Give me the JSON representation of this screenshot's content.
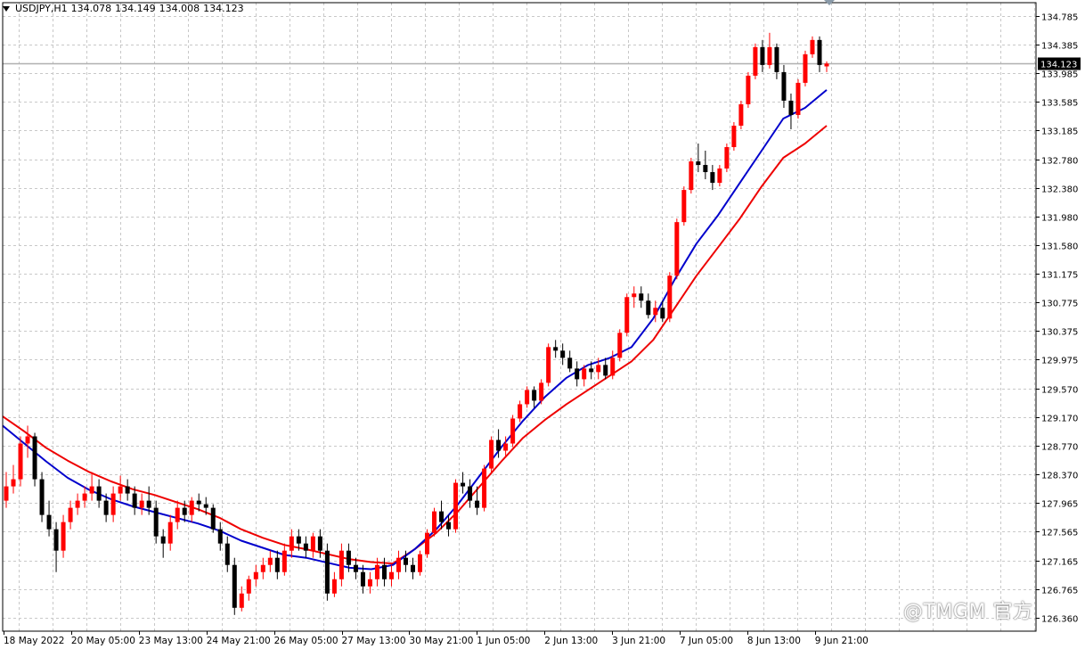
{
  "header": {
    "symbol": "USDJPY,H1",
    "open": "134.078",
    "high": "134.149",
    "low": "134.008",
    "close": "134.123"
  },
  "watermark": "@TMGM 官方",
  "chart_data": {
    "type": "candlestick",
    "symbol": "USDJPY",
    "timeframe": "H1",
    "last_price": "134.123",
    "ylim": [
      126.36,
      134.95
    ],
    "y_ticks": [
      "134.785",
      "134.385",
      "133.985",
      "133.585",
      "133.185",
      "132.780",
      "132.380",
      "131.980",
      "131.580",
      "131.175",
      "130.775",
      "130.375",
      "129.975",
      "129.570",
      "129.170",
      "128.770",
      "128.370",
      "127.965",
      "127.565",
      "127.165",
      "126.765",
      "126.360"
    ],
    "x_ticks": [
      "18 May 2022",
      "20 May 05:00",
      "23 May 13:00",
      "24 May 21:00",
      "26 May 05:00",
      "27 May 13:00",
      "30 May 21:00",
      "1 Jun 05:00",
      "2 Jun 13:00",
      "3 Jun 21:00",
      "7 Jun 05:00",
      "8 Jun 13:00",
      "9 Jun 21:00"
    ],
    "grid": true,
    "colors": {
      "up": "#ff0000",
      "down": "#000000",
      "ma_fast": "#0000cc",
      "ma_slow": "#ee0000",
      "bid_line": "#b0b0b0",
      "grid": "#c8c8c8"
    },
    "series": [
      {
        "type": "candles",
        "values": [
          [
            128.0,
            128.4,
            127.9,
            128.2
          ],
          [
            128.2,
            128.5,
            128.1,
            128.3
          ],
          [
            128.3,
            128.9,
            128.2,
            128.8
          ],
          [
            128.8,
            129.05,
            128.6,
            128.9
          ],
          [
            128.9,
            128.95,
            128.2,
            128.3
          ],
          [
            128.3,
            128.4,
            127.7,
            127.8
          ],
          [
            127.8,
            128.0,
            127.5,
            127.6
          ],
          [
            127.6,
            127.7,
            127.0,
            127.3
          ],
          [
            127.3,
            127.8,
            127.2,
            127.7
          ],
          [
            127.7,
            128.0,
            127.6,
            127.9
          ],
          [
            127.9,
            128.1,
            127.8,
            128.0
          ],
          [
            128.0,
            128.2,
            127.9,
            128.1
          ],
          [
            128.1,
            128.4,
            128.0,
            128.2
          ],
          [
            128.2,
            128.3,
            127.9,
            128.0
          ],
          [
            128.0,
            128.1,
            127.7,
            127.8
          ],
          [
            127.8,
            128.2,
            127.7,
            128.1
          ],
          [
            128.1,
            128.35,
            128.0,
            128.2
          ],
          [
            128.2,
            128.3,
            128.0,
            128.1
          ],
          [
            128.1,
            128.2,
            127.8,
            127.9
          ],
          [
            127.9,
            128.1,
            127.8,
            128.0
          ],
          [
            128.0,
            128.2,
            127.8,
            127.9
          ],
          [
            127.9,
            128.0,
            127.4,
            127.5
          ],
          [
            127.5,
            127.6,
            127.2,
            127.4
          ],
          [
            127.4,
            127.8,
            127.3,
            127.7
          ],
          [
            127.7,
            128.0,
            127.6,
            127.9
          ],
          [
            127.9,
            128.0,
            127.7,
            127.8
          ],
          [
            127.8,
            128.05,
            127.7,
            128.0
          ],
          [
            128.0,
            128.1,
            127.85,
            127.95
          ],
          [
            127.95,
            128.05,
            127.8,
            127.9
          ],
          [
            127.9,
            127.95,
            127.55,
            127.6
          ],
          [
            127.6,
            127.7,
            127.3,
            127.4
          ],
          [
            127.4,
            127.5,
            127.0,
            127.1
          ],
          [
            127.1,
            127.2,
            126.4,
            126.5
          ],
          [
            126.5,
            126.8,
            126.45,
            126.7
          ],
          [
            126.7,
            126.95,
            126.6,
            126.9
          ],
          [
            126.9,
            127.1,
            126.8,
            127.0
          ],
          [
            127.0,
            127.2,
            126.9,
            127.1
          ],
          [
            127.1,
            127.3,
            127.0,
            127.2
          ],
          [
            127.2,
            127.3,
            126.9,
            127.0
          ],
          [
            127.0,
            127.4,
            126.95,
            127.3
          ],
          [
            127.3,
            127.6,
            127.2,
            127.5
          ],
          [
            127.5,
            127.6,
            127.3,
            127.4
          ],
          [
            127.4,
            127.5,
            127.2,
            127.3
          ],
          [
            127.3,
            127.55,
            127.2,
            127.5
          ],
          [
            127.5,
            127.6,
            127.2,
            127.3
          ],
          [
            127.3,
            127.4,
            126.6,
            126.7
          ],
          [
            126.7,
            127.0,
            126.65,
            126.9
          ],
          [
            126.9,
            127.4,
            126.8,
            127.3
          ],
          [
            127.3,
            127.4,
            127.0,
            127.1
          ],
          [
            127.1,
            127.2,
            126.9,
            127.0
          ],
          [
            127.0,
            127.1,
            126.7,
            126.8
          ],
          [
            126.8,
            127.0,
            126.7,
            126.9
          ],
          [
            126.9,
            127.2,
            126.8,
            127.1
          ],
          [
            127.1,
            127.2,
            126.8,
            126.9
          ],
          [
            126.9,
            127.1,
            126.8,
            127.0
          ],
          [
            127.0,
            127.3,
            126.9,
            127.2
          ],
          [
            127.2,
            127.3,
            127.0,
            127.1
          ],
          [
            127.1,
            127.2,
            126.9,
            127.0
          ],
          [
            127.0,
            127.3,
            126.95,
            127.25
          ],
          [
            127.25,
            127.6,
            127.2,
            127.55
          ],
          [
            127.55,
            127.9,
            127.5,
            127.85
          ],
          [
            127.85,
            128.0,
            127.6,
            127.7
          ],
          [
            127.7,
            127.8,
            127.5,
            127.6
          ],
          [
            127.6,
            128.3,
            127.55,
            128.25
          ],
          [
            128.25,
            128.4,
            128.1,
            128.2
          ],
          [
            128.2,
            128.3,
            127.9,
            128.0
          ],
          [
            128.0,
            128.2,
            127.8,
            127.9
          ],
          [
            127.9,
            128.5,
            127.85,
            128.45
          ],
          [
            128.45,
            128.9,
            128.4,
            128.85
          ],
          [
            128.85,
            129.0,
            128.6,
            128.7
          ],
          [
            128.7,
            128.9,
            128.6,
            128.8
          ],
          [
            128.8,
            129.2,
            128.75,
            129.15
          ],
          [
            129.15,
            129.4,
            129.1,
            129.35
          ],
          [
            129.35,
            129.6,
            129.3,
            129.55
          ],
          [
            129.55,
            129.6,
            129.3,
            129.4
          ],
          [
            129.4,
            129.7,
            129.35,
            129.65
          ],
          [
            129.65,
            130.2,
            129.6,
            130.15
          ],
          [
            130.15,
            130.25,
            130.0,
            130.1
          ],
          [
            130.1,
            130.2,
            129.9,
            130.0
          ],
          [
            130.0,
            130.1,
            129.8,
            129.85
          ],
          [
            129.85,
            129.95,
            129.6,
            129.7
          ],
          [
            129.7,
            129.9,
            129.6,
            129.85
          ],
          [
            129.85,
            129.95,
            129.7,
            129.8
          ],
          [
            129.8,
            130.0,
            129.7,
            129.9
          ],
          [
            129.9,
            130.0,
            129.7,
            129.75
          ],
          [
            129.75,
            130.1,
            129.7,
            130.0
          ],
          [
            130.0,
            130.4,
            129.95,
            130.35
          ],
          [
            130.35,
            130.9,
            130.3,
            130.85
          ],
          [
            130.85,
            131.0,
            130.7,
            130.9
          ],
          [
            130.9,
            131.0,
            130.7,
            130.8
          ],
          [
            130.8,
            130.9,
            130.55,
            130.6
          ],
          [
            130.6,
            130.8,
            130.5,
            130.7
          ],
          [
            130.7,
            130.8,
            130.5,
            130.55
          ],
          [
            130.55,
            131.2,
            130.5,
            131.15
          ],
          [
            131.15,
            131.95,
            131.1,
            131.9
          ],
          [
            131.9,
            132.4,
            131.85,
            132.35
          ],
          [
            132.35,
            132.8,
            132.3,
            132.75
          ],
          [
            132.75,
            133.0,
            132.6,
            132.7
          ],
          [
            132.7,
            132.9,
            132.5,
            132.6
          ],
          [
            132.6,
            132.7,
            132.35,
            132.45
          ],
          [
            132.45,
            132.7,
            132.4,
            132.65
          ],
          [
            132.65,
            133.0,
            132.6,
            132.95
          ],
          [
            132.95,
            133.3,
            132.9,
            133.25
          ],
          [
            133.25,
            133.6,
            133.2,
            133.55
          ],
          [
            133.55,
            134.0,
            133.5,
            133.95
          ],
          [
            133.95,
            134.4,
            133.9,
            134.35
          ],
          [
            134.35,
            134.45,
            134.0,
            134.1
          ],
          [
            134.1,
            134.55,
            134.05,
            134.35
          ],
          [
            134.35,
            134.4,
            133.9,
            134.0
          ],
          [
            134.0,
            134.1,
            133.5,
            133.6
          ],
          [
            133.6,
            133.7,
            133.2,
            133.4
          ],
          [
            133.4,
            133.9,
            133.35,
            133.85
          ],
          [
            133.85,
            134.3,
            133.8,
            134.25
          ],
          [
            134.25,
            134.5,
            134.2,
            134.45
          ],
          [
            134.45,
            134.5,
            134.0,
            134.1
          ],
          [
            134.08,
            134.15,
            134.0,
            134.12
          ]
        ]
      },
      {
        "type": "line",
        "name": "",
        "values": [
          129.05,
          128.8,
          128.55,
          128.32,
          128.15,
          128.02,
          127.92,
          127.84,
          127.76,
          127.68,
          127.58,
          127.44,
          127.34,
          127.24,
          127.2,
          127.13,
          127.06,
          127.04,
          127.1,
          127.32,
          127.6,
          127.95,
          128.35,
          128.75,
          129.12,
          129.45,
          129.72,
          129.9,
          130.0,
          130.15,
          130.55,
          131.1,
          131.6,
          132.0,
          132.45,
          132.9,
          133.35,
          133.5,
          133.75
        ]
      },
      {
        "type": "line",
        "name": "",
        "values": [
          129.18,
          128.97,
          128.74,
          128.56,
          128.4,
          128.27,
          128.16,
          128.08,
          127.98,
          127.88,
          127.76,
          127.6,
          127.48,
          127.38,
          127.32,
          127.25,
          127.18,
          127.14,
          127.12,
          127.32,
          127.55,
          127.85,
          128.2,
          128.55,
          128.88,
          129.13,
          129.35,
          129.55,
          129.75,
          129.95,
          130.25,
          130.7,
          131.15,
          131.55,
          131.95,
          132.4,
          132.8,
          133.0,
          133.25
        ]
      }
    ]
  }
}
